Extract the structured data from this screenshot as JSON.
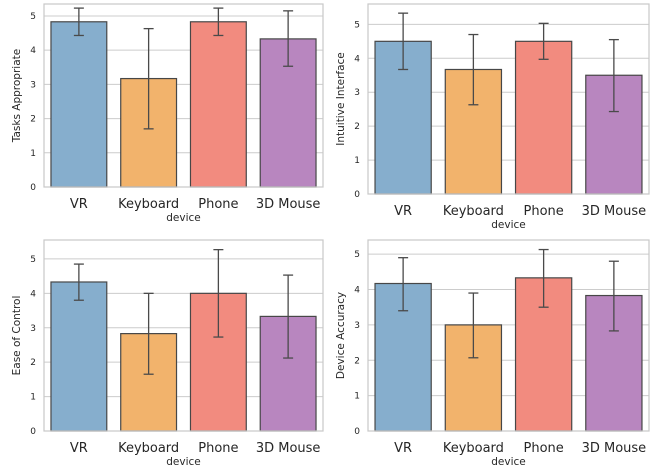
{
  "chart_data": [
    {
      "type": "bar",
      "categories": [
        "VR",
        "Keyboard",
        "Phone",
        "3D Mouse"
      ],
      "values": [
        4.83,
        3.17,
        4.83,
        4.33
      ],
      "errors": [
        [
          4.43,
          5.23
        ],
        [
          1.7,
          4.63
        ],
        [
          4.43,
          5.23
        ],
        [
          3.53,
          5.15
        ]
      ],
      "xlabel": "device",
      "ylabel": "Tasks Appropriate",
      "ylim": [
        0,
        5.35
      ],
      "yticks": [
        "0",
        "1",
        "2",
        "3",
        "4",
        "5"
      ],
      "grid": true
    },
    {
      "type": "bar",
      "categories": [
        "VR",
        "Keyboard",
        "Phone",
        "3D Mouse"
      ],
      "values": [
        4.5,
        3.67,
        4.5,
        3.5
      ],
      "errors": [
        [
          3.67,
          5.33
        ],
        [
          2.63,
          4.7
        ],
        [
          3.97,
          5.03
        ],
        [
          2.43,
          4.55
        ]
      ],
      "xlabel": "device",
      "ylabel": "Intuitive Interface",
      "ylim": [
        0,
        5.6
      ],
      "yticks": [
        "0",
        "1",
        "2",
        "3",
        "4",
        "5"
      ],
      "grid": true
    },
    {
      "type": "bar",
      "categories": [
        "VR",
        "Keyboard",
        "Phone",
        "3D Mouse"
      ],
      "values": [
        4.33,
        2.83,
        4.0,
        3.33
      ],
      "errors": [
        [
          3.8,
          4.85
        ],
        [
          1.65,
          4.0
        ],
        [
          2.73,
          5.27
        ],
        [
          2.12,
          4.53
        ]
      ],
      "xlabel": "device",
      "ylabel": "Ease of Control",
      "ylim": [
        0,
        5.55
      ],
      "yticks": [
        "0",
        "1",
        "2",
        "3",
        "4",
        "5"
      ],
      "grid": true
    },
    {
      "type": "bar",
      "categories": [
        "VR",
        "Keyboard",
        "Phone",
        "3D Mouse"
      ],
      "values": [
        4.17,
        3.0,
        4.33,
        3.83
      ],
      "errors": [
        [
          3.4,
          4.9
        ],
        [
          2.07,
          3.9
        ],
        [
          3.5,
          5.13
        ],
        [
          2.83,
          4.8
        ]
      ],
      "xlabel": "device",
      "ylabel": "Device Accuracy",
      "ylim": [
        0,
        5.4
      ],
      "yticks": [
        "0",
        "1",
        "2",
        "3",
        "4",
        "5"
      ],
      "grid": true
    }
  ],
  "colors": {
    "bars": [
      "#86aecd",
      "#f2b36c",
      "#f28b7f",
      "#b886bf"
    ],
    "edge": "#474747",
    "errorbar": "#4a4a4a",
    "grid": "#cccccc",
    "frame": "#c8c8c8"
  }
}
